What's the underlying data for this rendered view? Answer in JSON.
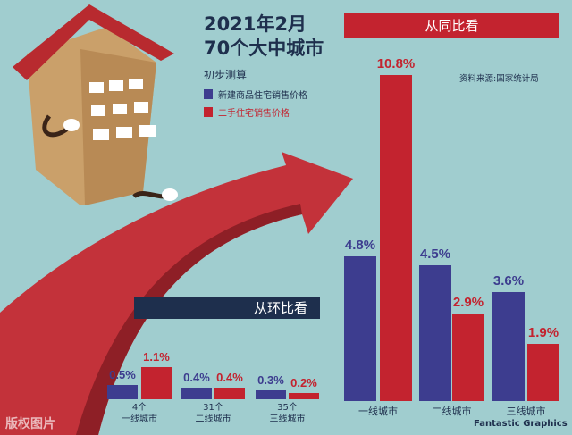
{
  "title_line1": "2021年2月",
  "title_line2": "70个大中城市",
  "subtitle": "初步测算",
  "source": "资料来源:国家统计局",
  "watermark": "版权图片",
  "brand": "Fantastic Graphics",
  "colors": {
    "new_homes": "#3d3d8f",
    "second_hand": "#c3232f",
    "background": "#a0cdcf",
    "navy": "#1e2f4d"
  },
  "chart_data": [
    {
      "type": "bar",
      "title": "从同比看",
      "categories": [
        "一线城市",
        "二线城市",
        "三线城市"
      ],
      "series": [
        {
          "name": "新建商品住宅销售价格",
          "values": [
            4.8,
            4.5,
            3.6
          ]
        },
        {
          "name": "二手住宅销售价格",
          "values": [
            10.8,
            2.9,
            1.9
          ]
        }
      ],
      "unit": "%",
      "legend": "top-left"
    },
    {
      "type": "bar",
      "title": "从环比看",
      "categories": [
        "4个\n一线城市",
        "31个\n二线城市",
        "35个\n三线城市"
      ],
      "category_counts": [
        "4个",
        "31个",
        "35个"
      ],
      "category_names": [
        "一线城市",
        "二线城市",
        "三线城市"
      ],
      "series": [
        {
          "name": "新建商品住宅销售价格",
          "values": [
            0.5,
            0.4,
            0.3
          ]
        },
        {
          "name": "二手住宅销售价格",
          "values": [
            1.1,
            0.4,
            0.2
          ]
        }
      ],
      "unit": "%"
    }
  ]
}
